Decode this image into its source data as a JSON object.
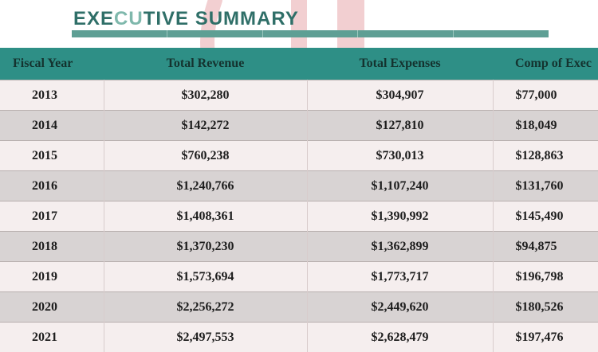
{
  "header": {
    "title_part1": "EXE",
    "title_part2": "CU",
    "title_part3": "TIVE SUMMARY"
  },
  "table": {
    "columns": [
      "Fiscal Year",
      "Total Revenue",
      "Total Expenses",
      "Comp of Exec"
    ],
    "rows": [
      [
        "2013",
        "$302,280",
        "$304,907",
        "$77,000"
      ],
      [
        "2014",
        "$142,272",
        "$127,810",
        "$18,049"
      ],
      [
        "2015",
        "$760,238",
        "$730,013",
        "$128,863"
      ],
      [
        "2016",
        "$1,240,766",
        "$1,107,240",
        "$131,760"
      ],
      [
        "2017",
        "$1,408,361",
        "$1,390,992",
        "$145,490"
      ],
      [
        "2018",
        "$1,370,230",
        "$1,362,899",
        "$94,875"
      ],
      [
        "2019",
        "$1,573,694",
        "$1,773,717",
        "$196,798"
      ],
      [
        "2020",
        "$2,256,272",
        "$2,449,620",
        "$180,526"
      ],
      [
        "2021",
        "$2,497,553",
        "$2,628,479",
        "$197,476"
      ]
    ]
  },
  "colors": {
    "header_teal": "#2e8f86",
    "title_dark": "#2f6f68",
    "title_light": "#7fb8ac",
    "row_light": "#f5eeee",
    "row_dark": "#d8d3d3",
    "watermark": "#e8a9ad"
  },
  "watermark": {
    "icon": "stylized-letter-watermark-icon"
  }
}
